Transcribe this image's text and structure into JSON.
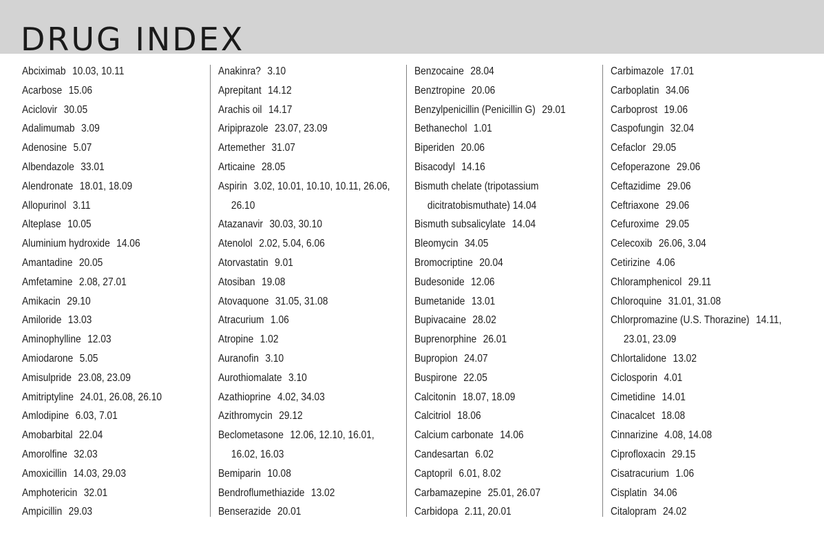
{
  "title": "DRUG INDEX",
  "columns": [
    [
      {
        "name": "Abciximab",
        "refs": "10.03, 10.11"
      },
      {
        "name": "Acarbose",
        "refs": "15.06"
      },
      {
        "name": "Aciclovir",
        "refs": "30.05"
      },
      {
        "name": "Adalimumab",
        "refs": "3.09"
      },
      {
        "name": "Adenosine",
        "refs": "5.07"
      },
      {
        "name": "Albendazole",
        "refs": "33.01"
      },
      {
        "name": "Alendronate",
        "refs": "18.01, 18.09"
      },
      {
        "name": "Allopurinol",
        "refs": "3.11"
      },
      {
        "name": "Alteplase",
        "refs": "10.05"
      },
      {
        "name": "Aluminium hydroxide",
        "refs": "14.06"
      },
      {
        "name": "Amantadine",
        "refs": "20.05"
      },
      {
        "name": "Amfetamine",
        "refs": "2.08, 27.01"
      },
      {
        "name": "Amikacin",
        "refs": "29.10"
      },
      {
        "name": "Amiloride",
        "refs": "13.03"
      },
      {
        "name": "Aminophylline",
        "refs": "12.03"
      },
      {
        "name": "Amiodarone",
        "refs": "5.05"
      },
      {
        "name": "Amisulpride",
        "refs": "23.08, 23.09"
      },
      {
        "name": "Amitriptyline",
        "refs": "24.01, 26.08, 26.10"
      },
      {
        "name": "Amlodipine",
        "refs": "6.03, 7.01"
      },
      {
        "name": "Amobarbital",
        "refs": "22.04"
      },
      {
        "name": "Amorolfine",
        "refs": "32.03"
      },
      {
        "name": "Amoxicillin",
        "refs": "14.03, 29.03"
      },
      {
        "name": "Amphotericin",
        "refs": "32.01"
      },
      {
        "name": "Ampicillin",
        "refs": "29.03"
      }
    ],
    [
      {
        "name": "Anakinra?",
        "refs": "3.10"
      },
      {
        "name": "Aprepitant",
        "refs": "14.12"
      },
      {
        "name": "Arachis oil",
        "refs": "14.17"
      },
      {
        "name": "Aripiprazole",
        "refs": "23.07, 23.09"
      },
      {
        "name": "Artemether",
        "refs": "31.07"
      },
      {
        "name": "Articaine",
        "refs": "28.05"
      },
      {
        "name": "Aspirin",
        "refs": "3.02, 10.01, 10.10, 10.11, 26.06,",
        "cont": "26.10"
      },
      {
        "name": "Atazanavir",
        "refs": "30.03, 30.10"
      },
      {
        "name": "Atenolol",
        "refs": "2.02, 5.04, 6.06"
      },
      {
        "name": "Atorvastatin",
        "refs": "9.01"
      },
      {
        "name": "Atosiban",
        "refs": "19.08"
      },
      {
        "name": "Atovaquone",
        "refs": "31.05, 31.08"
      },
      {
        "name": "Atracurium",
        "refs": "1.06"
      },
      {
        "name": "Atropine",
        "refs": "1.02"
      },
      {
        "name": "Auranofin",
        "refs": "3.10"
      },
      {
        "name": "Aurothiomalate",
        "refs": "3.10"
      },
      {
        "name": "Azathioprine",
        "refs": "4.02, 34.03"
      },
      {
        "name": "Azithromycin",
        "refs": "29.12"
      },
      {
        "name": "Beclometasone",
        "refs": "12.06, 12.10, 16.01,",
        "cont": "16.02, 16.03"
      },
      {
        "name": "Bemiparin",
        "refs": "10.08"
      },
      {
        "name": "Bendroflumethiazide",
        "refs": "13.02"
      },
      {
        "name": "Benserazide",
        "refs": "20.01"
      }
    ],
    [
      {
        "name": "Benzocaine",
        "refs": "28.04"
      },
      {
        "name": "Benztropine",
        "refs": "20.06"
      },
      {
        "name": "Benzylpenicillin (Penicillin G)",
        "refs": "29.01"
      },
      {
        "name": "Bethanechol",
        "refs": "1.01"
      },
      {
        "name": "Biperiden",
        "refs": "20.06"
      },
      {
        "name": "Bisacodyl",
        "refs": "14.16"
      },
      {
        "name": "Bismuth chelate (tripotassium",
        "refs": "",
        "cont": "dicitratobismuthate)  14.04"
      },
      {
        "name": "Bismuth subsalicylate",
        "refs": "14.04"
      },
      {
        "name": "Bleomycin",
        "refs": "34.05"
      },
      {
        "name": "Bromocriptine",
        "refs": "20.04"
      },
      {
        "name": "Budesonide",
        "refs": "12.06"
      },
      {
        "name": "Bumetanide",
        "refs": "13.01"
      },
      {
        "name": "Bupivacaine",
        "refs": "28.02"
      },
      {
        "name": "Buprenorphine",
        "refs": "26.01"
      },
      {
        "name": "Bupropion",
        "refs": "24.07"
      },
      {
        "name": "Buspirone",
        "refs": "22.05"
      },
      {
        "name": "Calcitonin",
        "refs": "18.07, 18.09"
      },
      {
        "name": "Calcitriol",
        "refs": "18.06"
      },
      {
        "name": "Calcium carbonate",
        "refs": "14.06"
      },
      {
        "name": "Candesartan",
        "refs": "6.02"
      },
      {
        "name": "Captopril",
        "refs": "6.01, 8.02"
      },
      {
        "name": "Carbamazepine",
        "refs": "25.01, 26.07"
      },
      {
        "name": "Carbidopa",
        "refs": "2.11, 20.01"
      }
    ],
    [
      {
        "name": "Carbimazole",
        "refs": "17.01"
      },
      {
        "name": "Carboplatin",
        "refs": "34.06"
      },
      {
        "name": "Carboprost",
        "refs": "19.06"
      },
      {
        "name": "Caspofungin",
        "refs": "32.04"
      },
      {
        "name": "Cefaclor",
        "refs": "29.05"
      },
      {
        "name": "Cefoperazone",
        "refs": "29.06"
      },
      {
        "name": "Ceftazidime",
        "refs": "29.06"
      },
      {
        "name": "Ceftriaxone",
        "refs": "29.06"
      },
      {
        "name": "Cefuroxime",
        "refs": "29.05"
      },
      {
        "name": "Celecoxib",
        "refs": "26.06, 3.04"
      },
      {
        "name": "Cetirizine",
        "refs": "4.06"
      },
      {
        "name": "Chloramphenicol",
        "refs": "29.11"
      },
      {
        "name": "Chloroquine",
        "refs": "31.01, 31.08"
      },
      {
        "name": "Chlorpromazine (U.S. Thorazine)",
        "refs": "14.11,",
        "cont": "23.01, 23.09"
      },
      {
        "name": "Chlortalidone",
        "refs": "13.02"
      },
      {
        "name": "Ciclosporin",
        "refs": "4.01"
      },
      {
        "name": "Cimetidine",
        "refs": "14.01"
      },
      {
        "name": "Cinacalcet",
        "refs": "18.08"
      },
      {
        "name": "Cinnarizine",
        "refs": "4.08, 14.08"
      },
      {
        "name": "Ciprofloxacin",
        "refs": "29.15"
      },
      {
        "name": "Cisatracurium",
        "refs": "1.06"
      },
      {
        "name": "Cisplatin",
        "refs": "34.06"
      },
      {
        "name": "Citalopram",
        "refs": "24.02"
      }
    ]
  ]
}
